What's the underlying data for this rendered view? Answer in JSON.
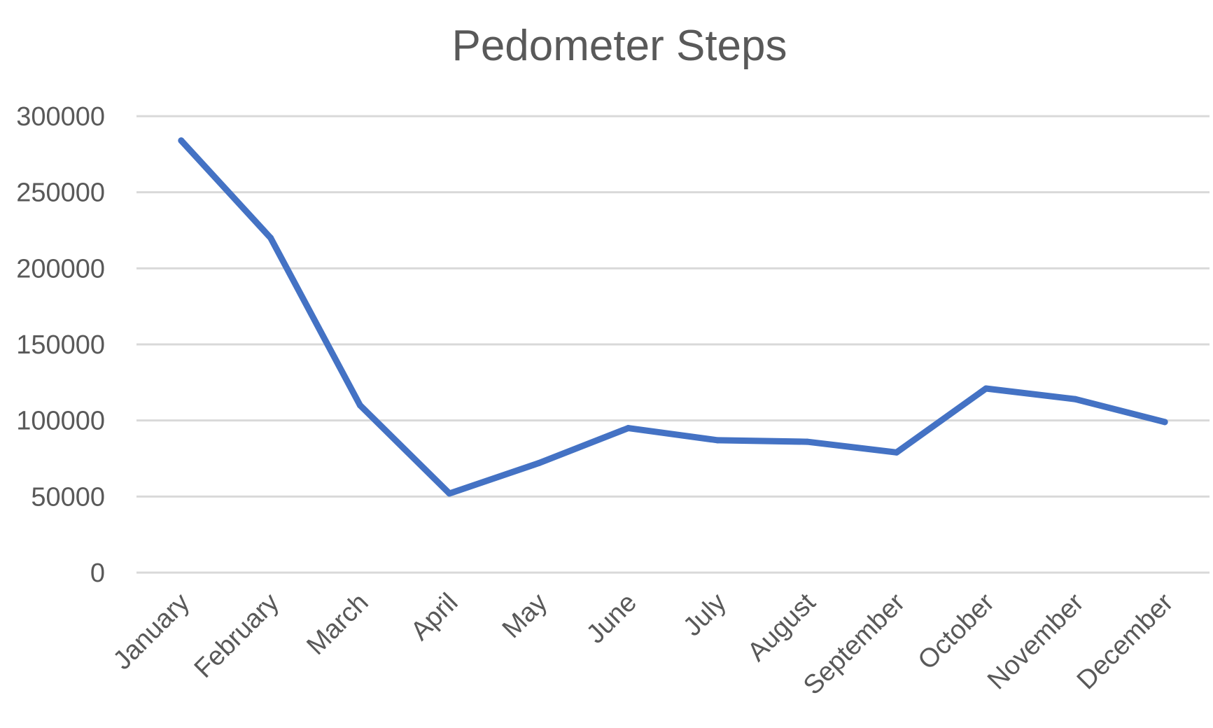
{
  "chart_data": {
    "type": "line",
    "title": "Pedometer Steps",
    "xlabel": "",
    "ylabel": "",
    "categories": [
      "January",
      "February",
      "March",
      "April",
      "May",
      "June",
      "July",
      "August",
      "September",
      "October",
      "November",
      "December"
    ],
    "series": [
      {
        "values": [
          284000,
          220000,
          110000,
          52000,
          72000,
          95000,
          87000,
          86000,
          79000,
          121000,
          114000,
          99000
        ]
      }
    ],
    "ylim": [
      0,
      300000
    ],
    "yticks": [
      "0",
      "50000",
      "100000",
      "150000",
      "200000",
      "250000",
      "300000"
    ],
    "grid": true,
    "legend": "none",
    "colors": {
      "series": "#4472c4",
      "grid": "#d9d9d9",
      "text": "#595959"
    }
  }
}
